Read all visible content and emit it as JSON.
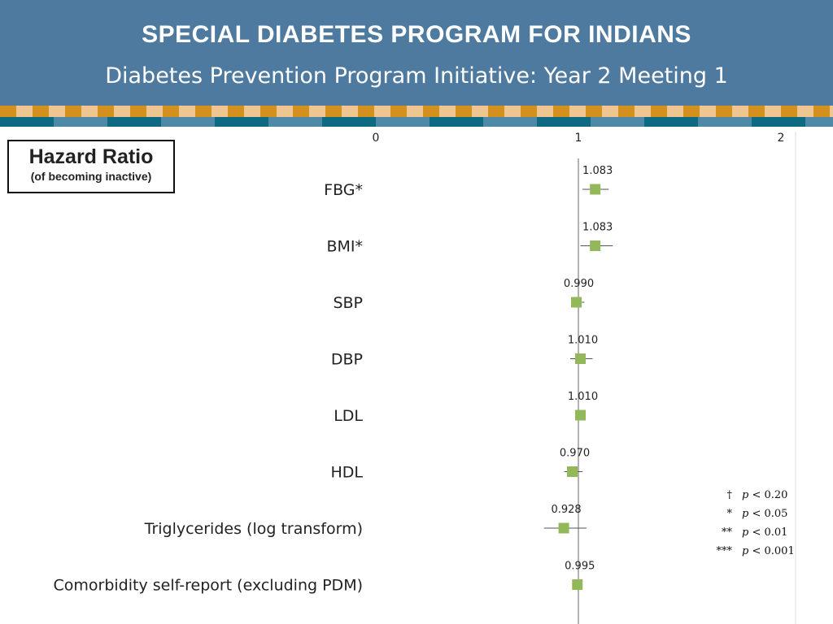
{
  "header": {
    "title": "SPECIAL DIABETES PROGRAM FOR INDIANS",
    "subtitle": "Diabetes Prevention Program Initiative:  Year 2 Meeting 1"
  },
  "legend_box": {
    "line1": "Hazard Ratio",
    "line2": "(of becoming inactive)"
  },
  "significance_key": [
    {
      "symbol": "†",
      "p": "p",
      "threshold": "< 0.20"
    },
    {
      "symbol": "*",
      "p": "p",
      "threshold": "< 0.05"
    },
    {
      "symbol": "**",
      "p": "p",
      "threshold": "< 0.01"
    },
    {
      "symbol": "***",
      "p": "p",
      "threshold": "< 0.001"
    }
  ],
  "colors": {
    "header_bg": "#4e7aa0",
    "marker": "#93b85a",
    "reference_line": "#7f7f7f"
  },
  "chart_data": {
    "type": "scatter",
    "title": "",
    "xlabel": "",
    "ylabel": "",
    "xlim": [
      0,
      2
    ],
    "xticks": [
      "0",
      "1",
      "2"
    ],
    "reference_value": 1,
    "categories": [
      "FBG*",
      "BMI*",
      "SBP",
      "DBP",
      "LDL",
      "HDL",
      "Triglycerides (log transform)",
      "Comorbidity self-report (excluding PDM)"
    ],
    "values": [
      1.083,
      1.083,
      0.99,
      1.01,
      1.01,
      0.97,
      0.928,
      0.995
    ],
    "value_labels": [
      "1.083",
      "1.083",
      "0.990",
      "1.010",
      "1.010",
      "0.970",
      "0.928",
      "0.995"
    ],
    "ci_low": [
      1.02,
      1.01,
      0.97,
      0.96,
      1.0,
      0.93,
      0.83,
      0.99
    ],
    "ci_high": [
      1.15,
      1.17,
      1.03,
      1.07,
      1.02,
      1.02,
      1.04,
      1.0
    ]
  }
}
